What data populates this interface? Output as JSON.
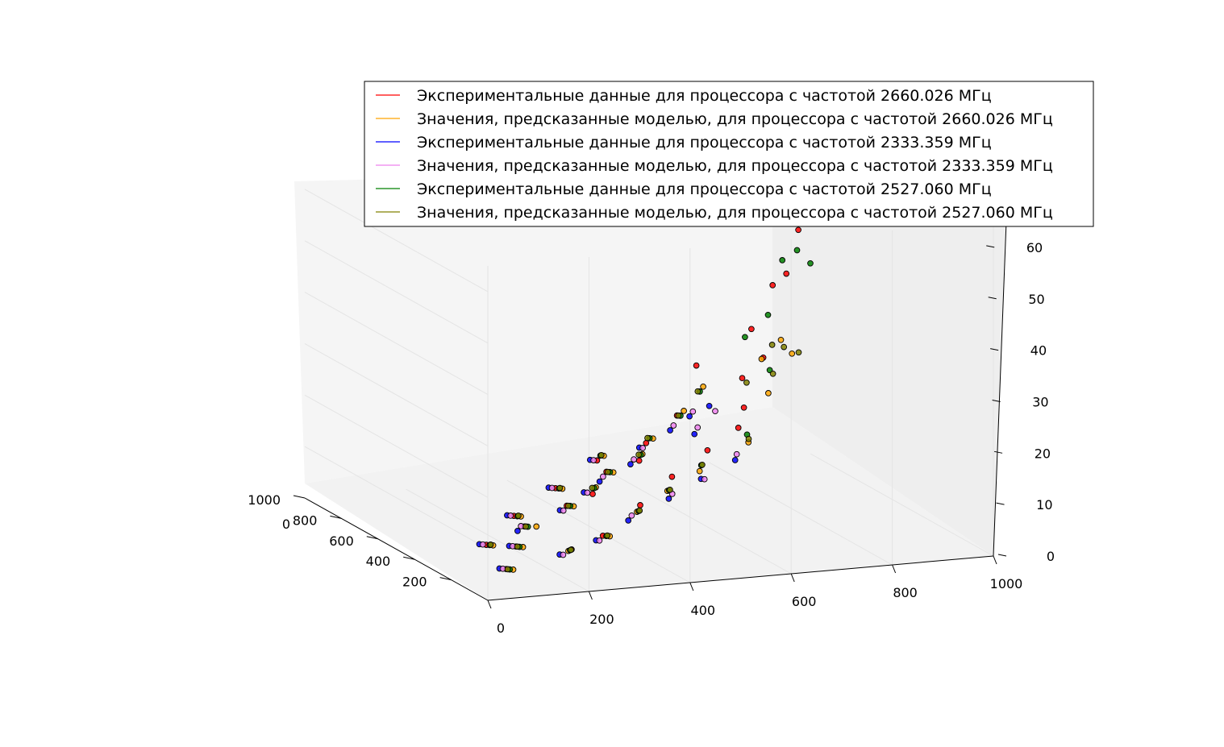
{
  "chart_data": {
    "type": "scatter",
    "projection": "3d",
    "grid": true,
    "legend_position": "top-right",
    "title": "",
    "xlabel": "",
    "ylabel": "",
    "zlabel": "",
    "axes": {
      "x": {
        "range": [
          0,
          1000
        ],
        "ticks": [
          "200",
          "400",
          "600",
          "800",
          "1000"
        ]
      },
      "y": {
        "range": [
          0,
          1000
        ],
        "ticks": [
          "0",
          "200",
          "400",
          "600",
          "800",
          "1000"
        ]
      },
      "z": {
        "range": [
          0,
          65
        ],
        "ticks": [
          "0",
          "10",
          "20",
          "30",
          "40",
          "50",
          "60"
        ]
      },
      "corner_label": "0"
    },
    "series": [
      {
        "name": "Экспериментальные данные для процессора с частотой 2660.026 МГц",
        "color": "#ff0000",
        "marker": "circle",
        "points": [
          [
            120,
            80,
            3
          ],
          [
            260,
            150,
            4
          ],
          [
            380,
            210,
            5
          ],
          [
            480,
            330,
            6
          ],
          [
            560,
            410,
            6
          ],
          [
            650,
            470,
            8
          ],
          [
            720,
            560,
            8
          ],
          [
            820,
            610,
            9
          ],
          [
            900,
            700,
            12
          ],
          [
            960,
            760,
            20
          ],
          [
            700,
            760,
            17
          ],
          [
            820,
            800,
            20
          ],
          [
            880,
            840,
            28
          ],
          [
            930,
            900,
            35
          ],
          [
            900,
            940,
            46
          ],
          [
            850,
            960,
            51
          ],
          [
            980,
            990,
            65
          ],
          [
            1000,
            1000,
            57
          ],
          [
            800,
            880,
            40
          ],
          [
            760,
            820,
            25
          ],
          [
            620,
            720,
            15
          ],
          [
            540,
            630,
            13
          ],
          [
            430,
            520,
            11
          ],
          [
            300,
            410,
            9
          ],
          [
            200,
            300,
            6
          ],
          [
            150,
            220,
            5
          ],
          [
            340,
            120,
            3
          ],
          [
            520,
            240,
            4
          ],
          [
            680,
            380,
            5
          ],
          [
            840,
            520,
            6
          ]
        ]
      },
      {
        "name": "Значения, предсказанные моделью, для процессора с частотой 2660.026 МГц",
        "color": "#ffa500",
        "marker": "circle",
        "points": [
          [
            110,
            90,
            3
          ],
          [
            250,
            160,
            4
          ],
          [
            370,
            230,
            5
          ],
          [
            470,
            340,
            6
          ],
          [
            570,
            420,
            7
          ],
          [
            640,
            480,
            8
          ],
          [
            730,
            570,
            9
          ],
          [
            810,
            620,
            10
          ],
          [
            890,
            710,
            13
          ],
          [
            950,
            770,
            16
          ],
          [
            760,
            830,
            18
          ],
          [
            880,
            860,
            22
          ],
          [
            940,
            920,
            24
          ],
          [
            990,
            960,
            20
          ],
          [
            620,
            740,
            12
          ],
          [
            500,
            600,
            10
          ],
          [
            400,
            500,
            9
          ],
          [
            290,
            400,
            8
          ],
          [
            190,
            310,
            6
          ],
          [
            140,
            210,
            5
          ],
          [
            330,
            130,
            3
          ],
          [
            510,
            250,
            4
          ],
          [
            670,
            390,
            5
          ],
          [
            830,
            530,
            7
          ]
        ]
      },
      {
        "name": "Экспериментальные данные для процессора с частотой 2333.359 МГц",
        "color": "#0000ff",
        "marker": "circle",
        "points": [
          [
            130,
            70,
            3
          ],
          [
            270,
            140,
            4
          ],
          [
            390,
            200,
            4
          ],
          [
            490,
            320,
            5
          ],
          [
            580,
            400,
            6
          ],
          [
            660,
            460,
            6
          ],
          [
            740,
            550,
            7
          ],
          [
            830,
            600,
            8
          ],
          [
            910,
            690,
            9
          ],
          [
            970,
            750,
            10
          ],
          [
            1000,
            800,
            11
          ],
          [
            860,
            720,
            9
          ],
          [
            610,
            710,
            9
          ],
          [
            520,
            610,
            8
          ],
          [
            420,
            510,
            7
          ],
          [
            310,
            390,
            6
          ],
          [
            210,
            290,
            5
          ],
          [
            160,
            200,
            4
          ],
          [
            350,
            110,
            3
          ],
          [
            530,
            230,
            4
          ],
          [
            690,
            370,
            5
          ],
          [
            850,
            510,
            6
          ]
        ]
      },
      {
        "name": "Значения, предсказанные моделью, для процессора с частотой 2333.359 МГц",
        "color": "#ee82ee",
        "marker": "circle",
        "points": [
          [
            125,
            75,
            3
          ],
          [
            265,
            145,
            4
          ],
          [
            385,
            205,
            5
          ],
          [
            485,
            325,
            5
          ],
          [
            575,
            405,
            6
          ],
          [
            655,
            465,
            7
          ],
          [
            735,
            555,
            8
          ],
          [
            825,
            605,
            8
          ],
          [
            905,
            695,
            10
          ],
          [
            965,
            755,
            11
          ],
          [
            995,
            810,
            10
          ],
          [
            870,
            730,
            10
          ],
          [
            615,
            715,
            10
          ],
          [
            515,
            615,
            8
          ],
          [
            415,
            515,
            8
          ],
          [
            305,
            395,
            7
          ],
          [
            205,
            295,
            5
          ],
          [
            155,
            205,
            4
          ],
          [
            345,
            115,
            3
          ],
          [
            525,
            235,
            4
          ],
          [
            685,
            375,
            5
          ],
          [
            845,
            515,
            6
          ]
        ]
      },
      {
        "name": "Экспериментальные данные для процессора с частотой 2527.060 МГц",
        "color": "#008000",
        "marker": "circle",
        "points": [
          [
            115,
            85,
            3
          ],
          [
            255,
            155,
            4
          ],
          [
            375,
            215,
            5
          ],
          [
            475,
            335,
            6
          ],
          [
            565,
            415,
            7
          ],
          [
            645,
            475,
            8
          ],
          [
            725,
            565,
            9
          ],
          [
            815,
            615,
            10
          ],
          [
            895,
            705,
            12
          ],
          [
            955,
            765,
            15
          ],
          [
            780,
            840,
            22
          ],
          [
            900,
            880,
            30
          ],
          [
            960,
            930,
            39
          ],
          [
            990,
            970,
            40
          ],
          [
            1000,
            1000,
            37
          ],
          [
            860,
            820,
            27
          ],
          [
            600,
            730,
            14
          ],
          [
            505,
            605,
            11
          ],
          [
            405,
            505,
            9
          ],
          [
            295,
            405,
            8
          ],
          [
            195,
            305,
            6
          ],
          [
            145,
            215,
            5
          ],
          [
            335,
            125,
            3
          ],
          [
            515,
            245,
            4
          ],
          [
            675,
            385,
            5
          ],
          [
            835,
            525,
            7
          ]
        ]
      },
      {
        "name": "Значения, предсказанные моделью, для процессора с частотой 2527.060 МГц",
        "color": "#808000",
        "marker": "circle",
        "points": [
          [
            118,
            82,
            3
          ],
          [
            258,
            152,
            4
          ],
          [
            378,
            212,
            5
          ],
          [
            478,
            332,
            6
          ],
          [
            568,
            412,
            7
          ],
          [
            648,
            472,
            8
          ],
          [
            728,
            562,
            9
          ],
          [
            818,
            612,
            10
          ],
          [
            898,
            702,
            12
          ],
          [
            958,
            762,
            15
          ],
          [
            790,
            850,
            21
          ],
          [
            905,
            890,
            24
          ],
          [
            965,
            935,
            22
          ],
          [
            995,
            975,
            20
          ],
          [
            865,
            825,
            18
          ],
          [
            605,
            735,
            13
          ],
          [
            508,
            608,
            11
          ],
          [
            408,
            508,
            9
          ],
          [
            298,
            408,
            8
          ],
          [
            198,
            308,
            6
          ],
          [
            148,
            218,
            5
          ],
          [
            338,
            128,
            3
          ],
          [
            518,
            248,
            4
          ],
          [
            678,
            388,
            5
          ],
          [
            838,
            528,
            7
          ]
        ]
      }
    ]
  }
}
